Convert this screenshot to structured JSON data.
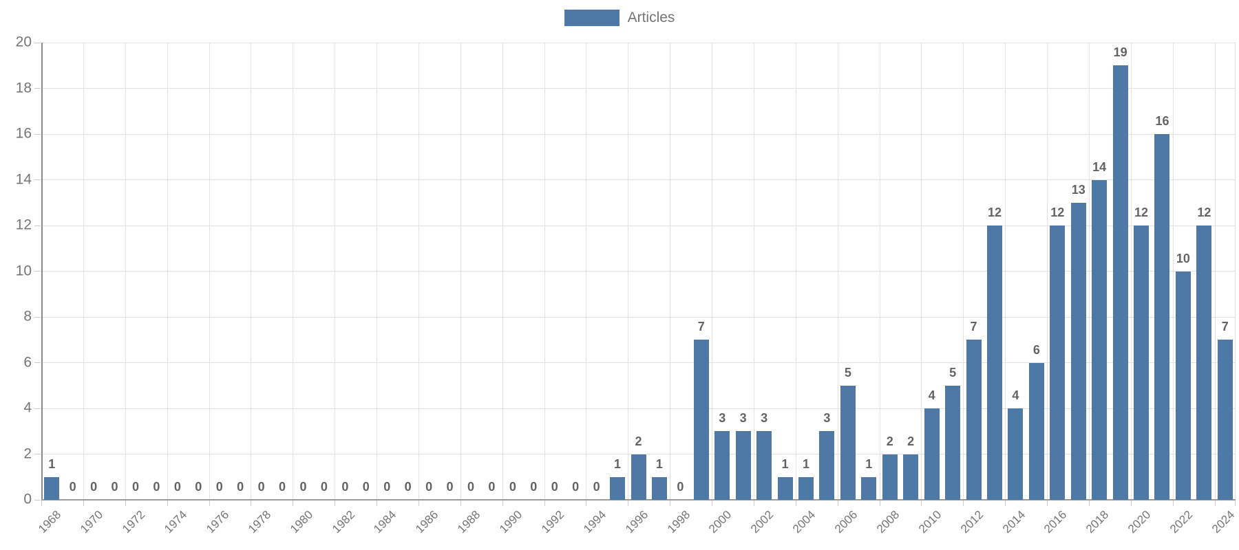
{
  "chart_data": {
    "type": "bar",
    "title": "",
    "legend_label": "Articles",
    "legend_position": "top-center",
    "grid": true,
    "value_labels": true,
    "categories": [
      1968,
      1969,
      1970,
      1971,
      1972,
      1973,
      1974,
      1975,
      1976,
      1977,
      1978,
      1979,
      1980,
      1981,
      1982,
      1983,
      1984,
      1985,
      1986,
      1987,
      1988,
      1989,
      1990,
      1991,
      1992,
      1993,
      1994,
      1995,
      1996,
      1997,
      1998,
      1999,
      2000,
      2001,
      2002,
      2003,
      2004,
      2005,
      2006,
      2007,
      2008,
      2009,
      2010,
      2011,
      2012,
      2013,
      2014,
      2015,
      2016,
      2017,
      2018,
      2019,
      2020,
      2021,
      2022,
      2023,
      2024
    ],
    "values": [
      1,
      0,
      0,
      0,
      0,
      0,
      0,
      0,
      0,
      0,
      0,
      0,
      0,
      0,
      0,
      0,
      0,
      0,
      0,
      0,
      0,
      0,
      0,
      0,
      0,
      0,
      0,
      1,
      2,
      1,
      0,
      7,
      3,
      3,
      3,
      1,
      1,
      3,
      5,
      1,
      2,
      2,
      4,
      5,
      7,
      12,
      4,
      6,
      12,
      13,
      14,
      19,
      12,
      16,
      10,
      12,
      7
    ],
    "xlabel": "",
    "ylabel": "",
    "ylim": [
      0,
      20
    ],
    "y_tick_step": 2,
    "x_label_every_n_years": 2,
    "colors": {
      "bar": "#4e79a7",
      "grid": "#e2e2e2",
      "axis": "#9a9a9a",
      "tick": "#cccccc",
      "axis_label": "#757575",
      "value_label": "#636363"
    }
  }
}
